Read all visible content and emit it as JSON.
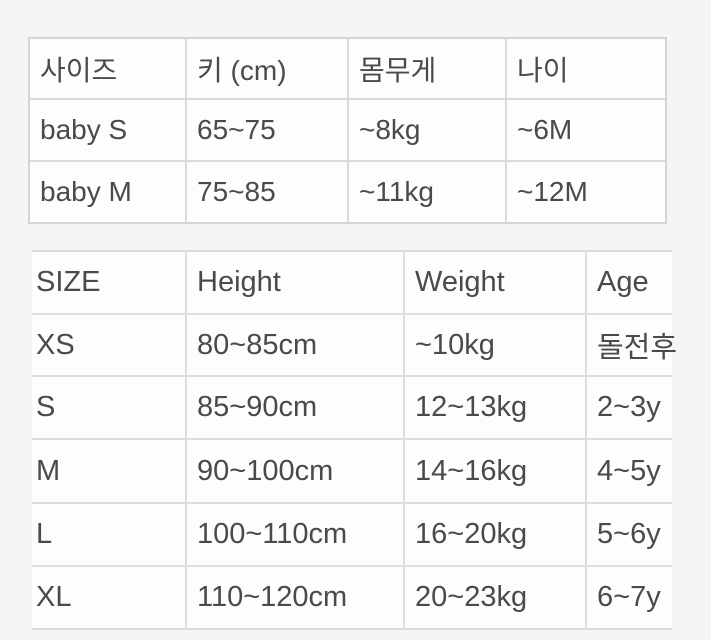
{
  "colors": {
    "page_background": "#f6f5f3",
    "cell_background": "#fdfdfc",
    "grid_line": "#dadad8",
    "text": "#4a4a4a"
  },
  "chart_data": [
    {
      "type": "table",
      "columns": [
        "사이즈",
        "키 (cm)",
        "몸무게",
        "나이"
      ],
      "rows": [
        [
          "baby S",
          "65~75",
          "~8kg",
          "~6M"
        ],
        [
          "baby M",
          "75~85",
          "~11kg",
          "~12M"
        ]
      ]
    },
    {
      "type": "table",
      "columns": [
        "SIZE",
        "Height",
        "Weight",
        "Age"
      ],
      "rows": [
        [
          "XS",
          "80~85cm",
          "~10kg",
          "돌전후"
        ],
        [
          "S",
          "85~90cm",
          "12~13kg",
          "2~3y"
        ],
        [
          "M",
          "90~100cm",
          "14~16kg",
          "4~5y"
        ],
        [
          "L",
          "100~110cm",
          "16~20kg",
          "5~6y"
        ],
        [
          "XL",
          "110~120cm",
          "20~23kg",
          "6~7y"
        ]
      ]
    }
  ]
}
